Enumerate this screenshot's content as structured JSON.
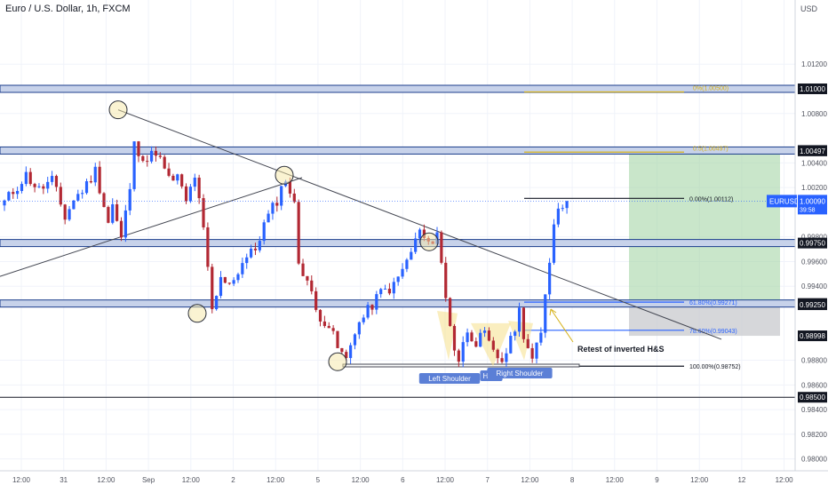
{
  "header": {
    "title": "Euro / U.S. Dollar, 1h, FXCM",
    "currency": "USD"
  },
  "colors": {
    "up": "#2962ff",
    "down": "#b22833",
    "zone_fill": "#c7d2ea",
    "zone_border": "#1c3e8c",
    "target_fill": "#a5d6a7",
    "stop_fill": "#c8c9ce",
    "fib_line": "#d6b21c",
    "marker_fill": "#f6e8a5",
    "label_fill": "#5b7fd6"
  },
  "chart_data": {
    "type": "candlestick",
    "symbol": "EURUSD",
    "timeframe": "1h",
    "ylim": [
      0.9776,
      1.0172
    ],
    "y_ticks": [
      "1.01200",
      "1.00800",
      "1.00400",
      "1.00200",
      "0.99800",
      "0.99600",
      "0.99400",
      "0.98800",
      "0.98600",
      "0.98400",
      "0.98200",
      "0.98000"
    ],
    "x_ticks": [
      "12:00",
      "31",
      "12:00",
      "Sep",
      "12:00",
      "2",
      "12:00",
      "5",
      "12:00",
      "6",
      "12:00",
      "7",
      "12:00",
      "8",
      "12:00",
      "9",
      "12:00",
      "12",
      "12:00"
    ],
    "last_price": {
      "symbol_label": "EURUSD",
      "price": "1.00090",
      "countdown": "39:58",
      "value": 1.0009
    },
    "horizontal_zones": [
      {
        "label": "1.01000",
        "value": 1.01
      },
      {
        "label": "1.00500",
        "value": 1.005
      },
      {
        "label": "0.99750",
        "value": 0.9975
      },
      {
        "label": "0.99260",
        "value": 0.9926
      }
    ],
    "price_labels_dark": [
      {
        "label": "1.00497",
        "value": 1.00497
      },
      {
        "label": "0.99250",
        "value": 0.9925
      },
      {
        "label": "0.98998",
        "value": 0.98998
      },
      {
        "label": "0.98500",
        "value": 0.985
      }
    ],
    "fibonacci": [
      {
        "label": "0.00%(1.00112)",
        "value": 1.00112
      },
      {
        "label": "61.80%(0.99271)",
        "value": 0.99271
      },
      {
        "label": "78.60%(0.99043)",
        "value": 0.99043
      },
      {
        "label": "100.00%(0.98752)",
        "value": 0.98752
      }
    ],
    "upper_fib_labels": [
      {
        "label": "0%(1.00500)",
        "value": 1.00975
      },
      {
        "label": "0.5(1.00497)",
        "value": 1.00487
      }
    ],
    "position": {
      "target": 1.00497,
      "entry": 0.9925,
      "stop": 0.98998
    },
    "pattern_labels": [
      "Left Shoulder",
      "Head",
      "Right Shoulder"
    ],
    "annotation": "Retest of inverted H&S",
    "candles": []
  }
}
